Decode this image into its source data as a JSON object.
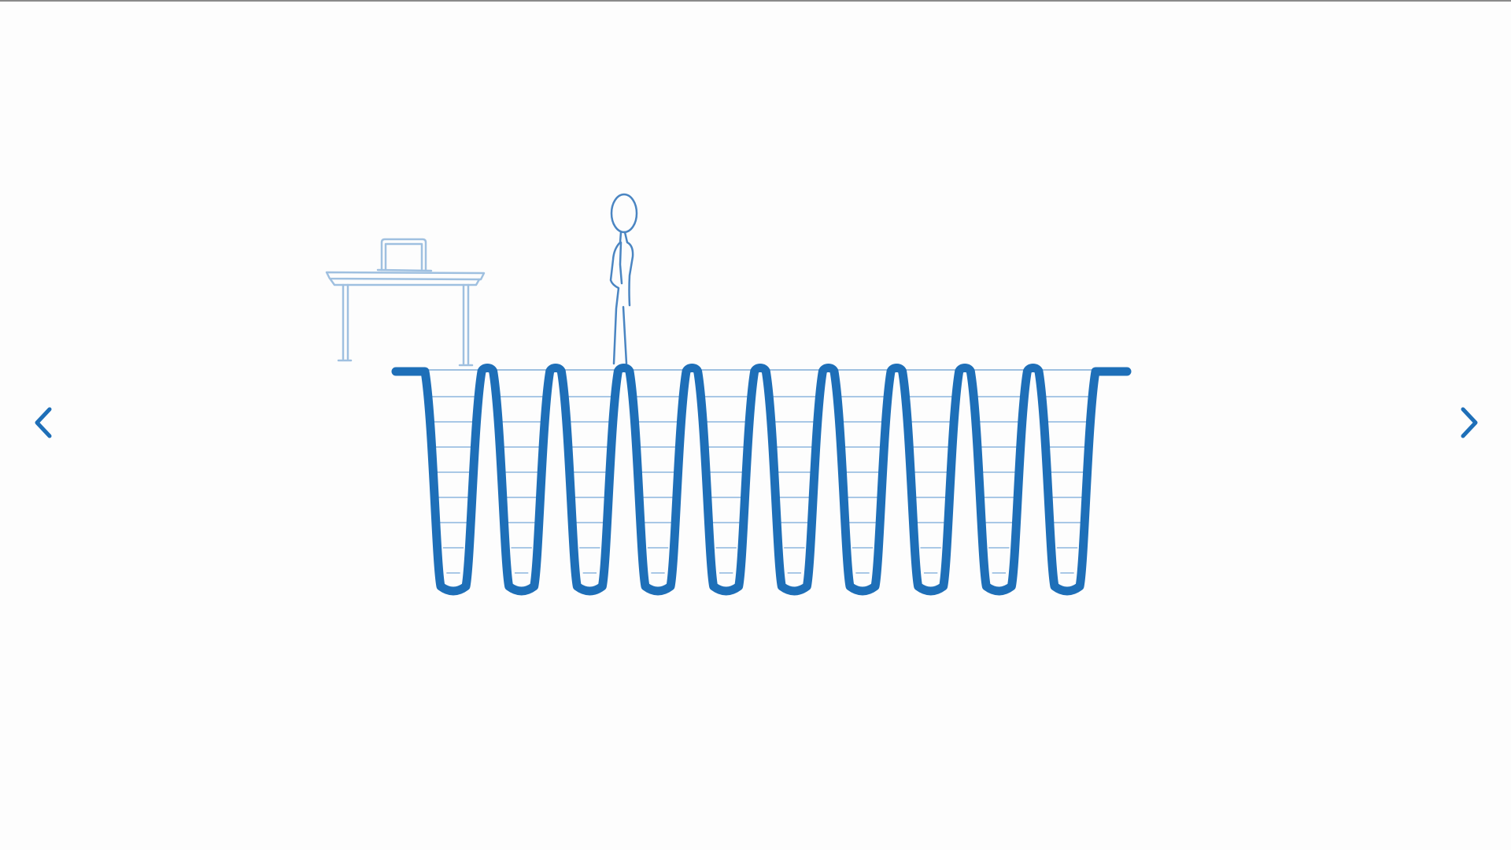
{
  "colors": {
    "background": "#fdfdfd",
    "accent": "#1e6fb8",
    "line_light": "#a9c8e6",
    "line_figure": "#3f7fc0"
  },
  "navigation": {
    "prev_icon": "chevron-left-icon",
    "next_icon": "chevron-right-icon"
  },
  "illustration": {
    "elements": [
      "desk",
      "laptop",
      "stick-figure",
      "pits"
    ],
    "pit_count": 10
  }
}
